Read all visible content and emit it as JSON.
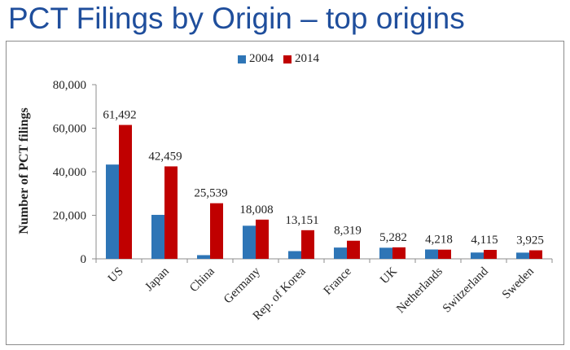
{
  "title": "PCT Filings by Origin – top origins",
  "chart_data": {
    "type": "bar",
    "categories": [
      "US",
      "Japan",
      "China",
      "Germany",
      "Rep. of Korea",
      "France",
      "UK",
      "Netherlands",
      "Switzerland",
      "Sweden"
    ],
    "series": [
      {
        "name": "2004",
        "color": "#2e75b6",
        "values": [
          43300,
          20200,
          1700,
          15200,
          3550,
          5180,
          5100,
          4300,
          2900,
          2850
        ]
      },
      {
        "name": "2014",
        "color": "#c00000",
        "values": [
          61492,
          42459,
          25539,
          18008,
          13151,
          8319,
          5282,
          4218,
          4115,
          3925
        ]
      }
    ],
    "data_labels": [
      "61,492",
      "42,459",
      "25,539",
      "18,008",
      "13,151",
      "8,319",
      "5,282",
      "4,218",
      "4,115",
      "3,925"
    ],
    "ylabel": "Number of PCT filings",
    "xlabel": "",
    "ylim": [
      0,
      80000
    ],
    "yticks": [
      0,
      20000,
      40000,
      60000,
      80000
    ],
    "ytick_labels": [
      "0",
      "20,000",
      "40,000",
      "60,000",
      "80,000"
    ],
    "legend_position": "top",
    "grid": false
  }
}
